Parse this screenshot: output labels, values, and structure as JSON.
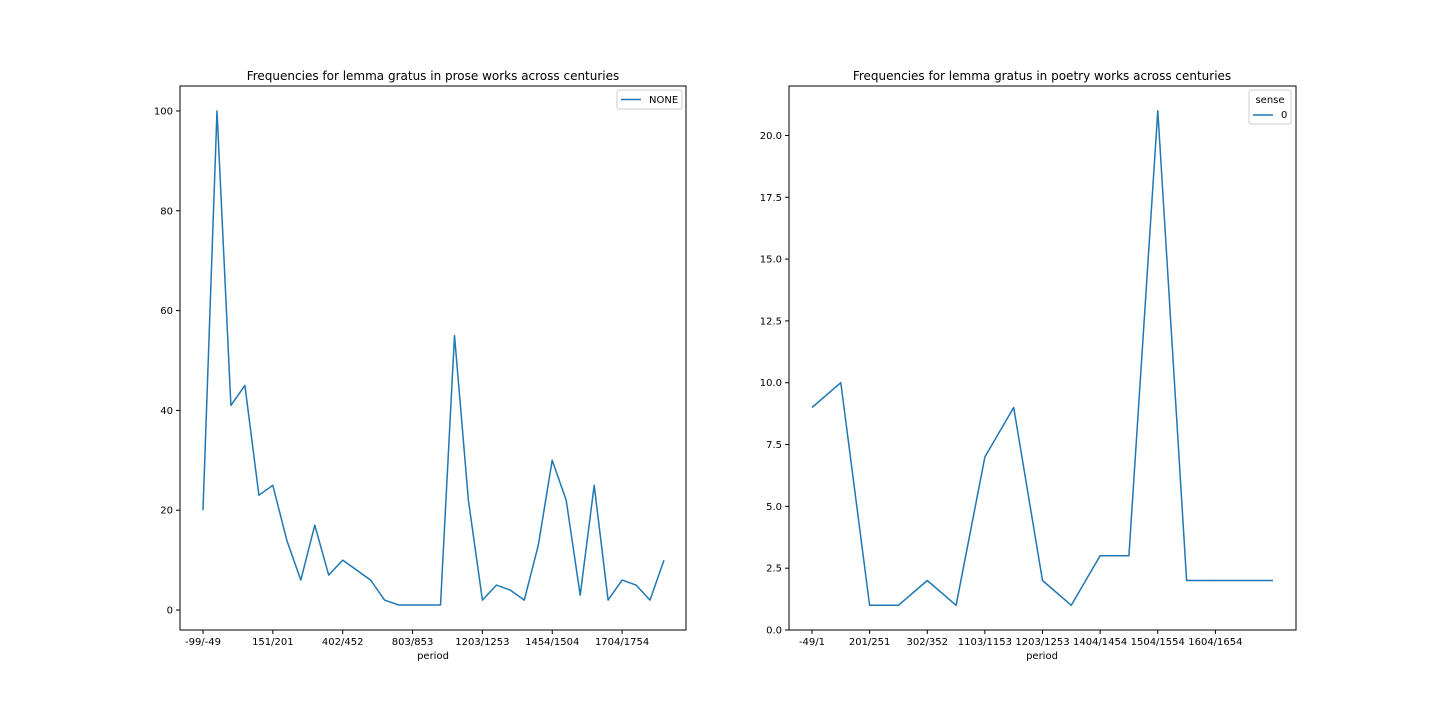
{
  "chart_data": [
    {
      "type": "line",
      "title": "Frequencies for lemma gratus in prose works across centuries",
      "xlabel": "period",
      "ylabel": "",
      "ylim": [
        -4,
        105
      ],
      "yticks": [
        0,
        20,
        40,
        60,
        80,
        100
      ],
      "xtick_labels": [
        "-99/-49",
        "151/201",
        "402/452",
        "803/853",
        "1203/1253",
        "1454/1504",
        "1704/1754"
      ],
      "xtick_index": [
        0,
        5,
        10,
        15,
        20,
        25,
        30
      ],
      "legend": {
        "title": "",
        "placement": "top-right"
      },
      "grid": false,
      "series": [
        {
          "name": "NONE",
          "color": "#1f77b4",
          "values": [
            20,
            100,
            41,
            45,
            23,
            25,
            14,
            6,
            17,
            7,
            10,
            8,
            6,
            2,
            1,
            1,
            1,
            1,
            55,
            22,
            2,
            5,
            4,
            2,
            13,
            30,
            22,
            3,
            25,
            2,
            6,
            5,
            2,
            10
          ]
        }
      ]
    },
    {
      "type": "line",
      "title": "Frequencies for lemma gratus in poetry works across centuries",
      "xlabel": "period",
      "ylabel": "",
      "ylim": [
        0,
        22
      ],
      "yticks": [
        "0.0",
        "2.5",
        "5.0",
        "7.5",
        "10.0",
        "12.5",
        "15.0",
        "17.5",
        "20.0"
      ],
      "xtick_labels": [
        "-49/1",
        "201/251",
        "302/352",
        "1103/1153",
        "1203/1253",
        "1404/1454",
        "1504/1554",
        "1604/1654"
      ],
      "xtick_index": [
        0,
        2,
        4,
        6,
        8,
        10,
        12,
        14
      ],
      "legend": {
        "title": "sense",
        "placement": "top-right"
      },
      "grid": false,
      "series": [
        {
          "name": "0",
          "color": "#1f77b4",
          "values": [
            9,
            10,
            1,
            1,
            2,
            1,
            7,
            9,
            2,
            1,
            3,
            3,
            21,
            2,
            2,
            2,
            2
          ]
        }
      ]
    }
  ]
}
